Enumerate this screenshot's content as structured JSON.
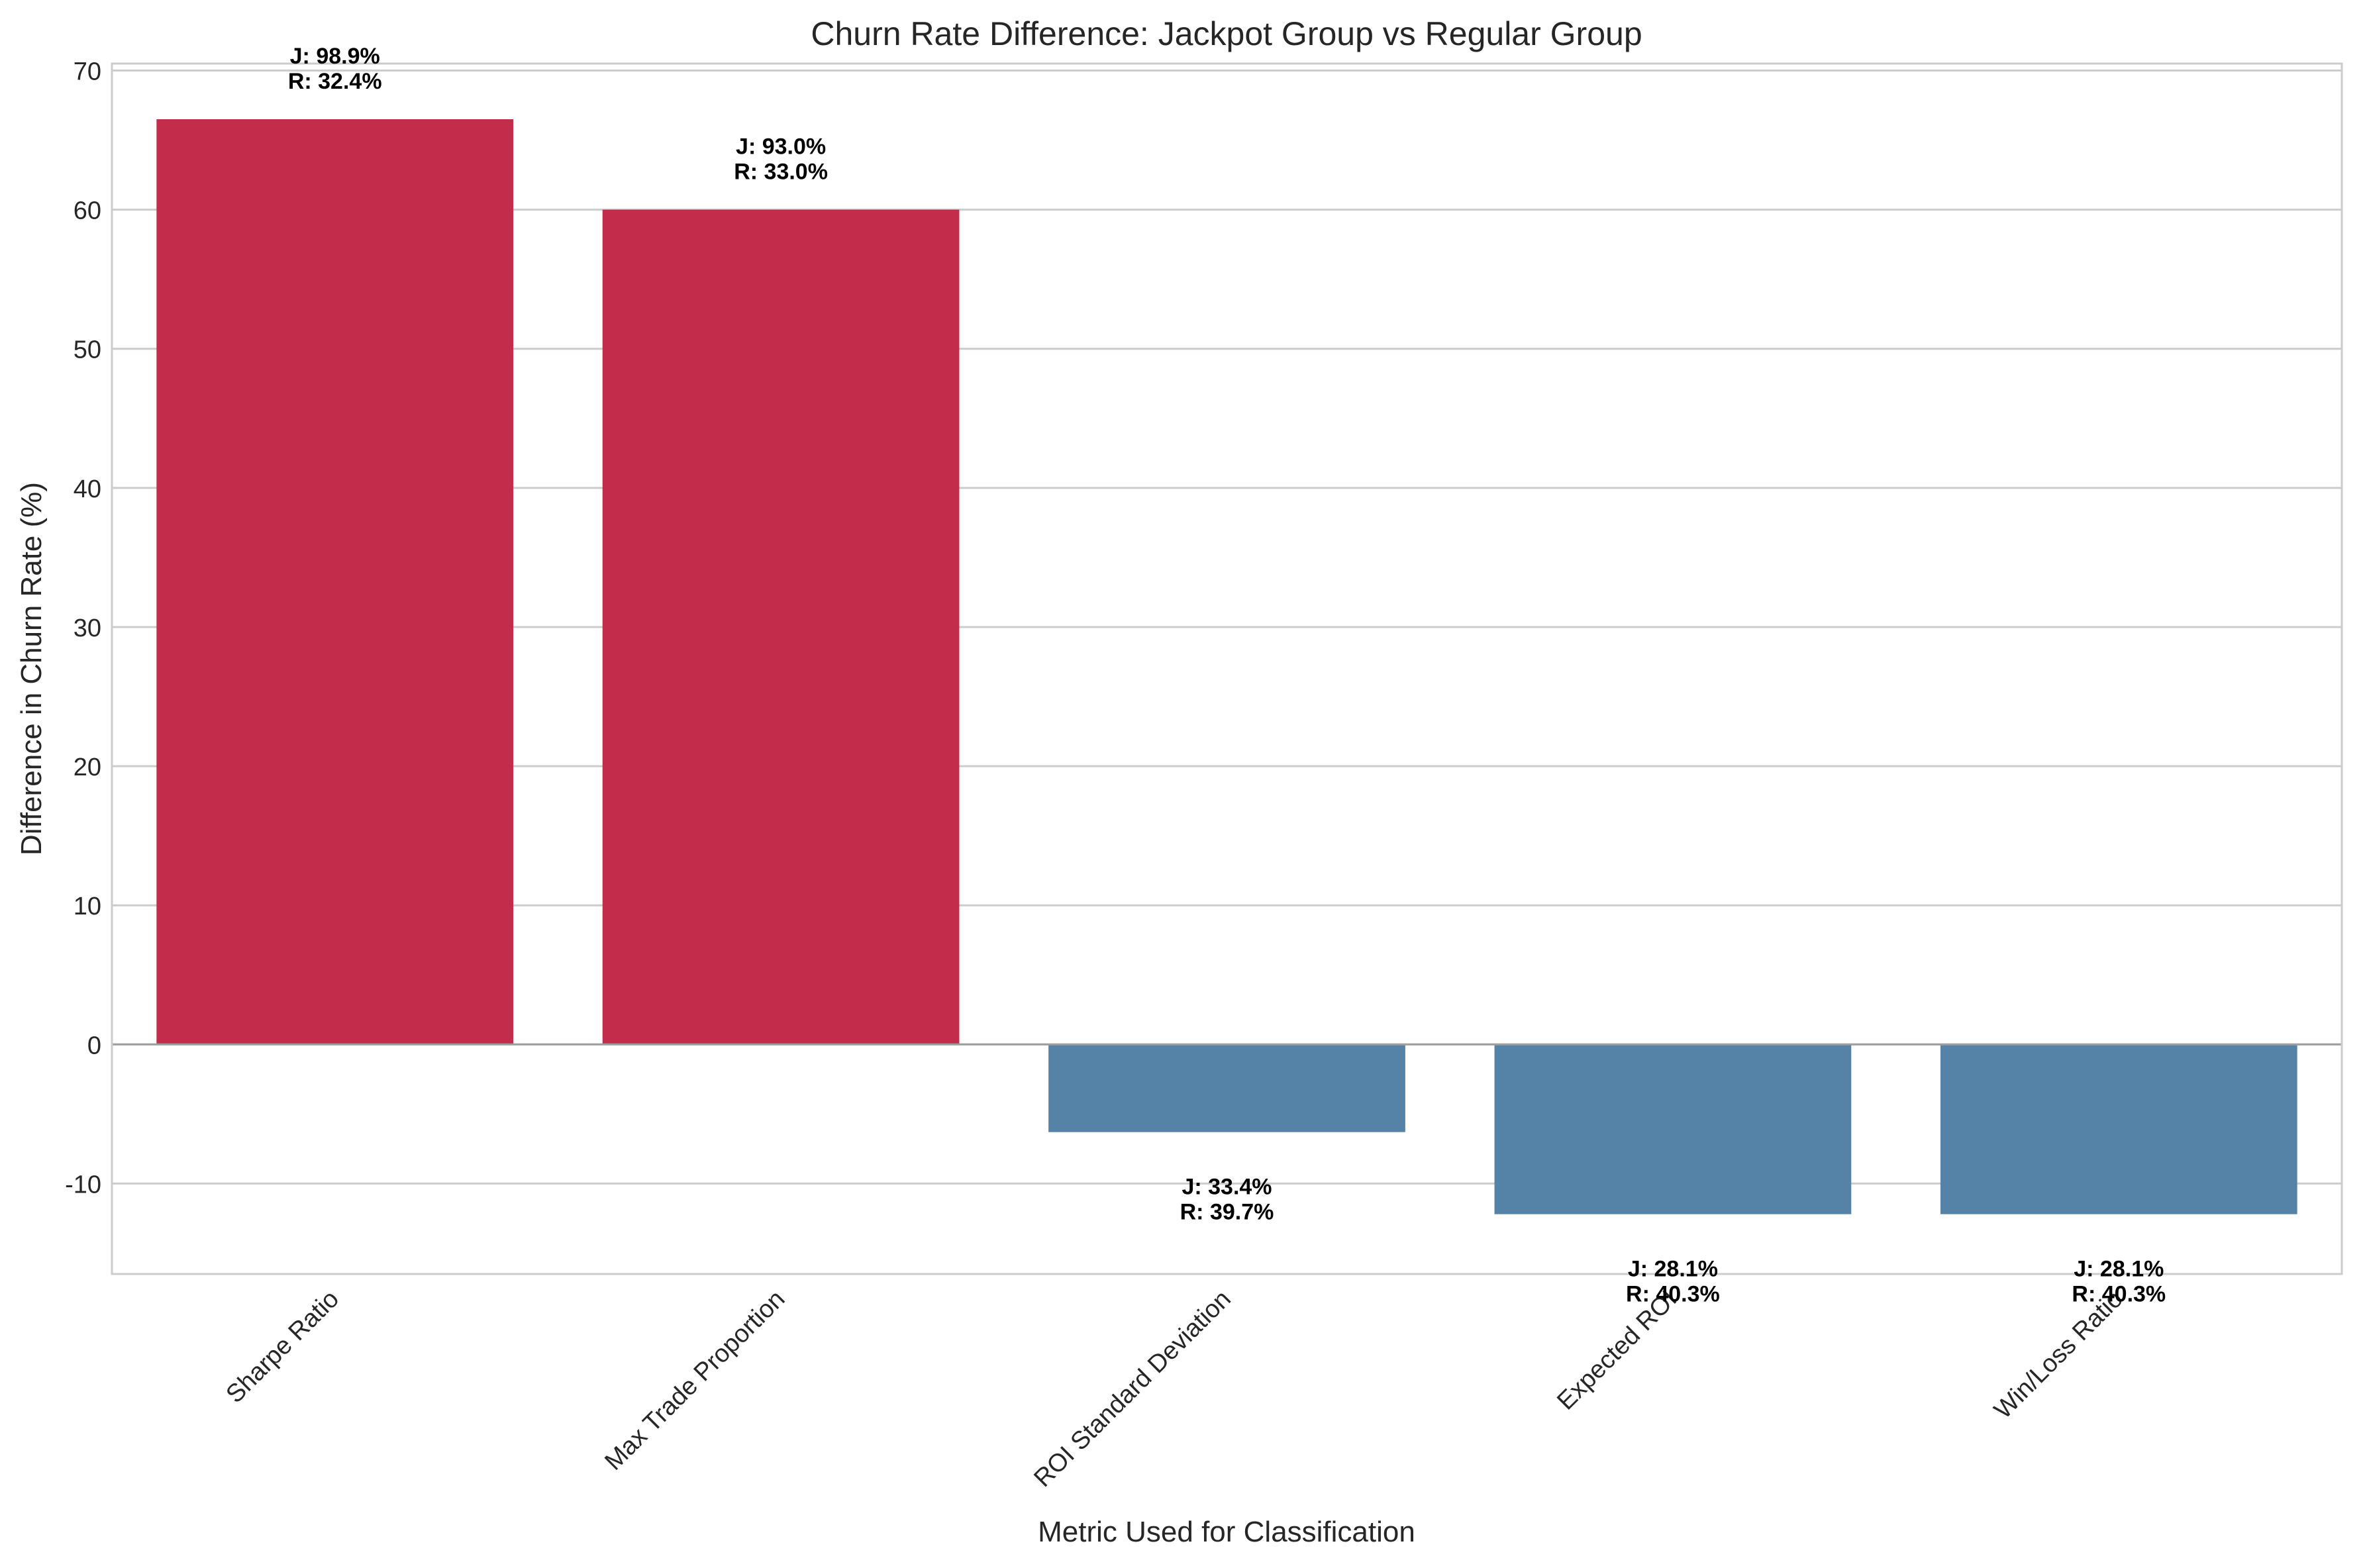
{
  "chart_data": {
    "type": "bar",
    "title": "Churn Rate Difference: Jackpot Group vs Regular Group",
    "xlabel": "Metric Used for Classification",
    "ylabel": "Difference in Churn Rate (%)",
    "ylim": [
      -16.5,
      70.5
    ],
    "yticks": [
      -10,
      0,
      10,
      20,
      30,
      40,
      50,
      60,
      70
    ],
    "grid": true,
    "legend": "none",
    "colors": {
      "positive": "#c32c4a",
      "negative": "#5582a7"
    },
    "categories": [
      "Sharpe Ratio",
      "Max Trade Proportion",
      "ROI Standard Deviation",
      "Expected ROI",
      "Win/Loss Ratio"
    ],
    "values": [
      66.5,
      60.0,
      -6.3,
      -12.2,
      -12.2
    ],
    "annotations": [
      {
        "j": "J: 98.9%",
        "r": "R: 32.4%"
      },
      {
        "j": "J: 93.0%",
        "r": "R: 33.0%"
      },
      {
        "j": "J: 33.4%",
        "r": "R: 39.7%"
      },
      {
        "j": "J: 28.1%",
        "r": "R: 40.3%"
      },
      {
        "j": "J: 28.1%",
        "r": "R: 40.3%"
      }
    ]
  }
}
